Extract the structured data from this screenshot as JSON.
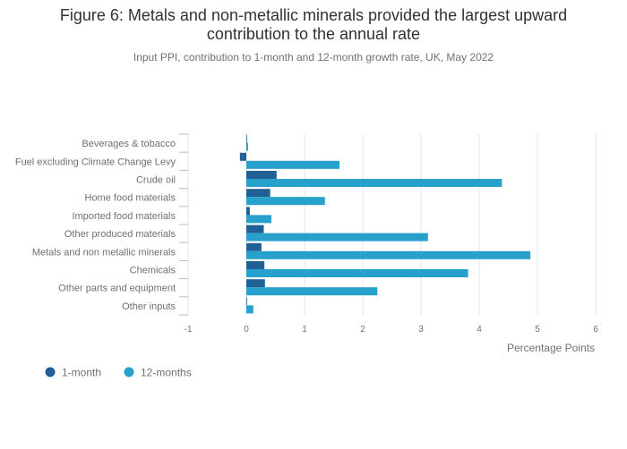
{
  "title_line1": "Figure 6: Metals and non-metallic minerals provided the largest upward",
  "title_line2": "contribution to the annual rate",
  "subtitle": "Input PPI, contribution to 1-month and 12-month growth rate, UK, May 2022",
  "colors": {
    "one_month": "#206095",
    "twelve_months": "#27a0cc",
    "grid": "#e6e6e6",
    "text": "#707071"
  },
  "chart_data": {
    "type": "bar",
    "orientation": "horizontal",
    "title": "Figure 6: Metals and non-metallic minerals provided the largest upward contribution to the annual rate",
    "subtitle": "Input PPI, contribution to 1-month and 12-month growth rate, UK, May 2022",
    "categories": [
      "Beverages & tobacco",
      "Fuel excluding Climate Change Levy",
      "Crude oil",
      "Home food materials",
      "Imported food materials",
      "Other produced materials",
      "Metals and non metallic minerals",
      "Chemicals",
      "Other parts and equipment",
      "Other inputs"
    ],
    "series": [
      {
        "name": "1-month",
        "values": [
          0.01,
          -0.11,
          0.52,
          0.41,
          0.06,
          0.3,
          0.26,
          0.31,
          0.32,
          0.01
        ]
      },
      {
        "name": "12-months",
        "values": [
          0.03,
          1.6,
          4.39,
          1.35,
          0.43,
          3.12,
          4.88,
          3.81,
          2.25,
          0.12
        ]
      }
    ],
    "xlabel": "Percentage Points",
    "ylabel": "",
    "xlim": [
      -1,
      6
    ],
    "xticks": [
      "-1",
      "0",
      "1",
      "2",
      "3",
      "4",
      "5",
      "6"
    ],
    "grid": true,
    "legend": "bottom-left"
  }
}
